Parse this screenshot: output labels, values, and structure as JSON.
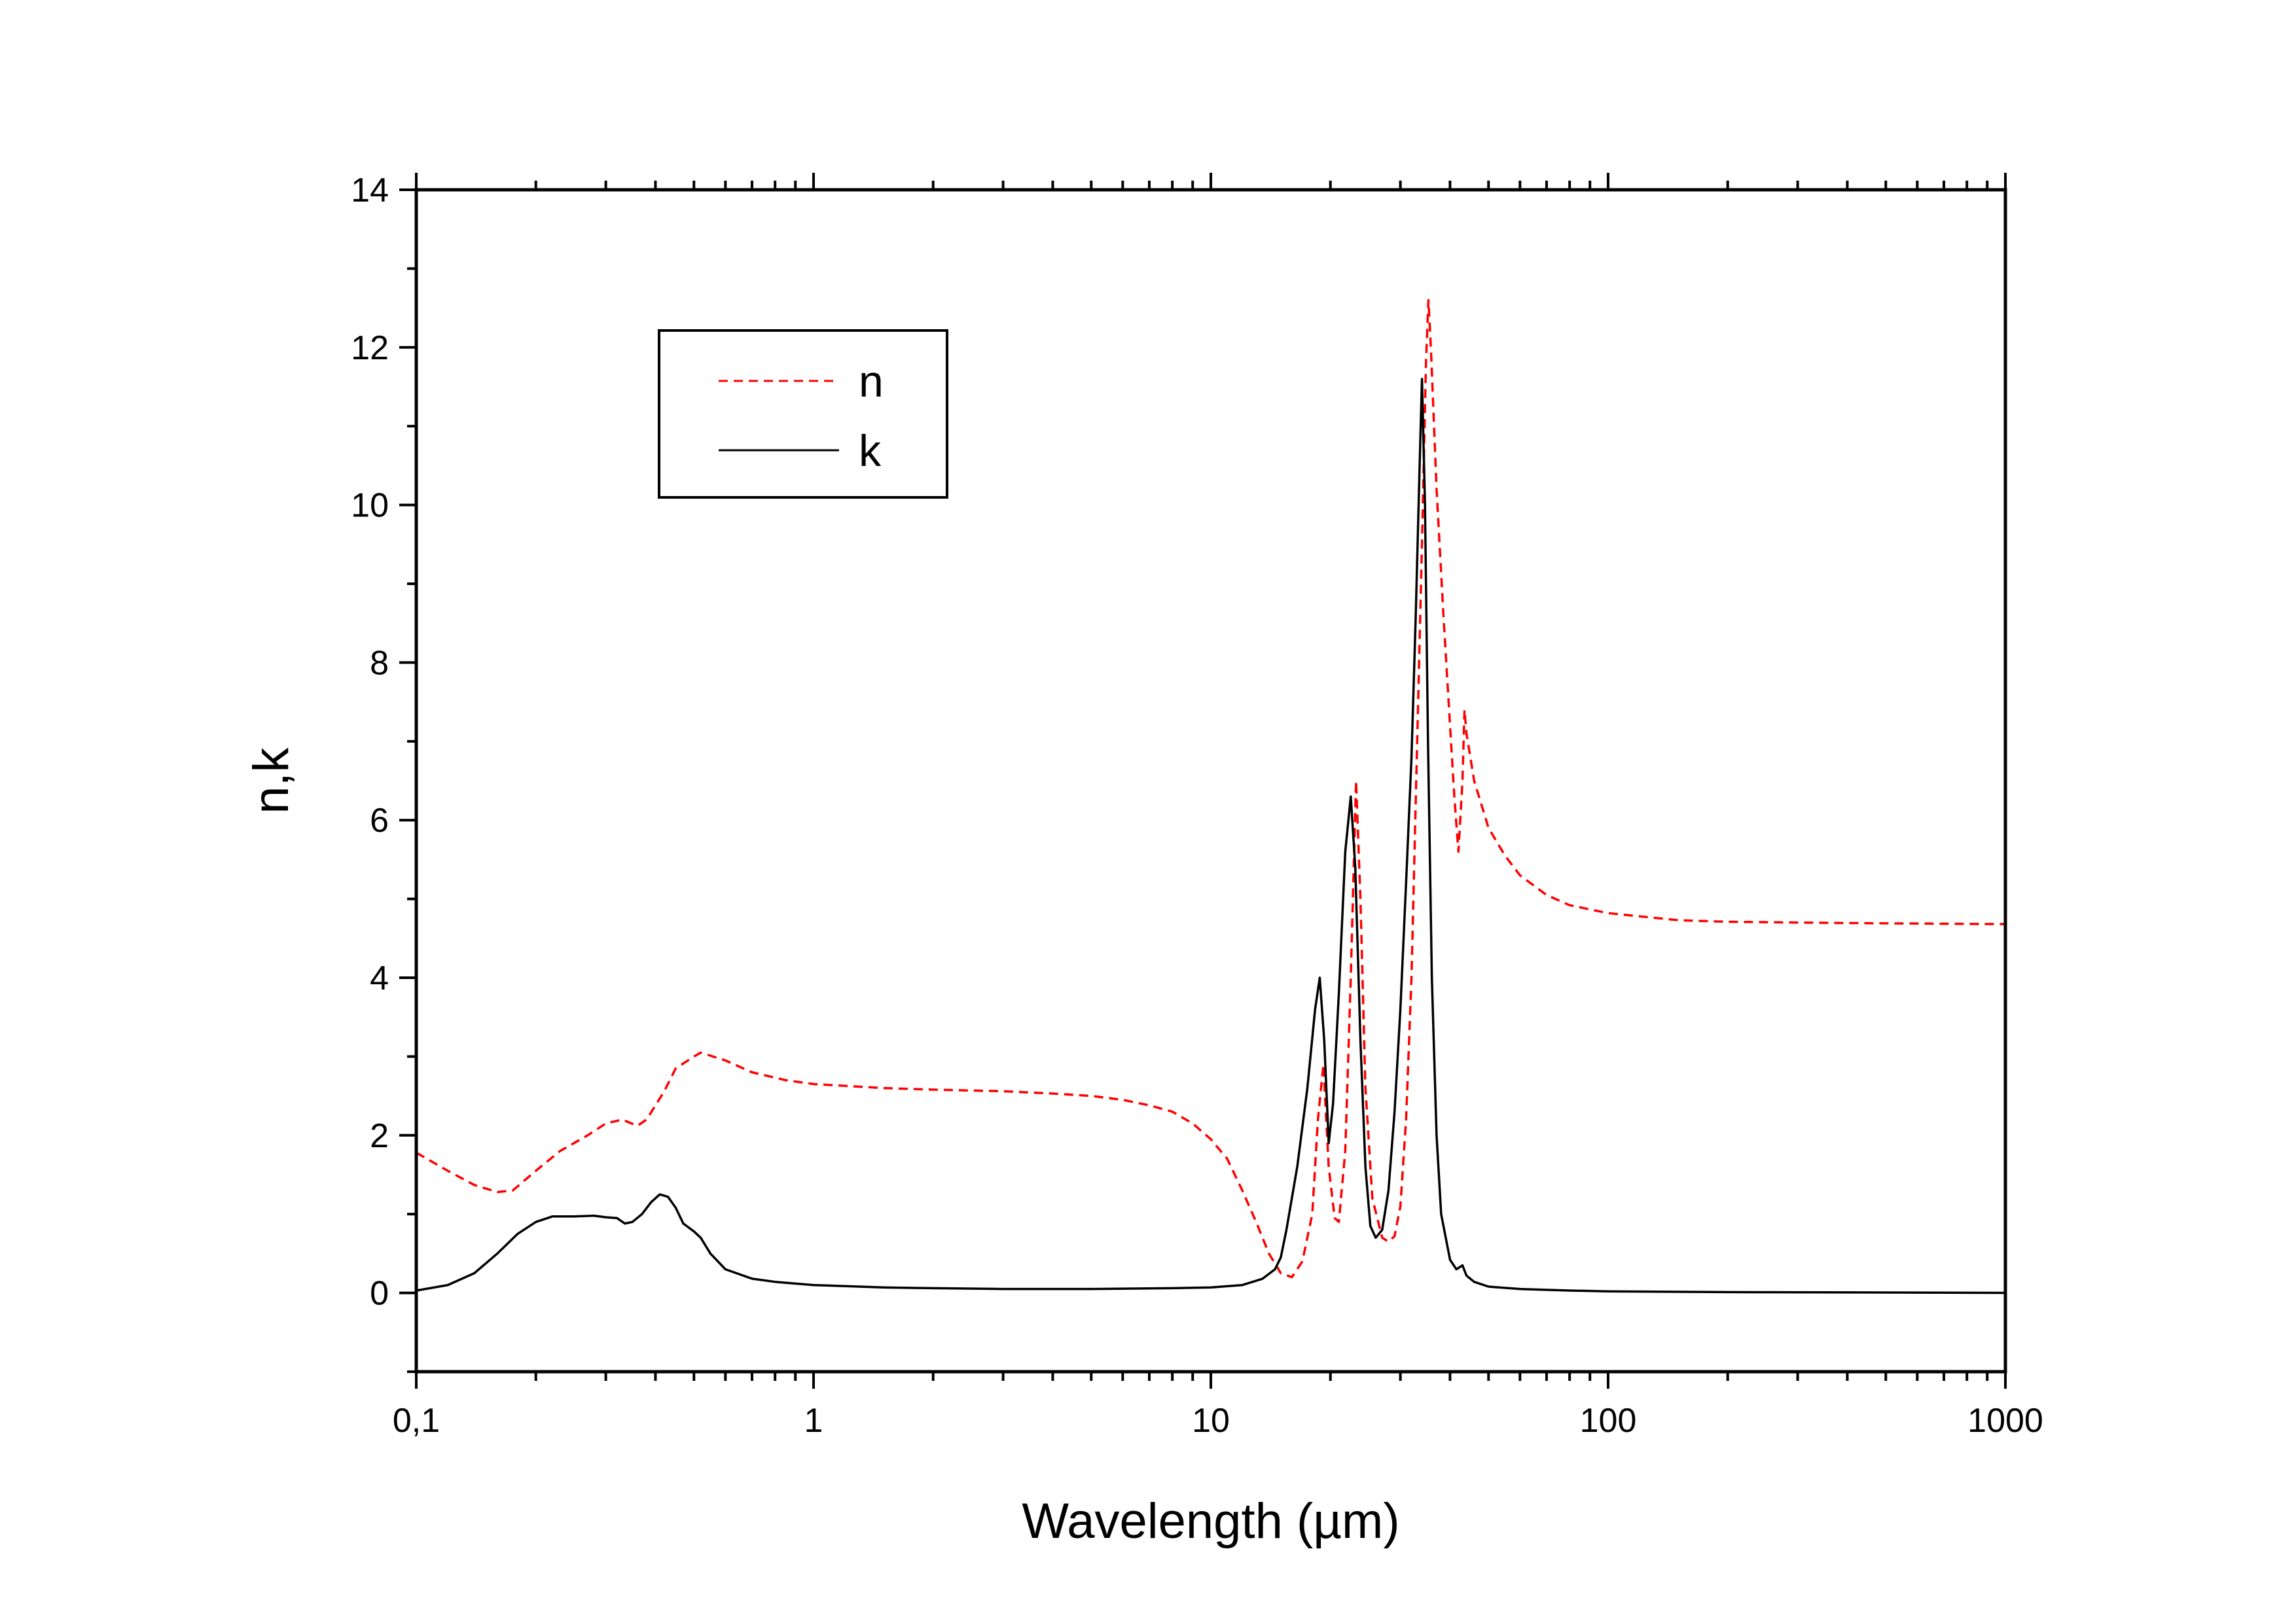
{
  "chart_data": {
    "type": "line",
    "title": "",
    "xlabel": "Wavelength (µm)",
    "ylabel": "n,k",
    "xscale": "log",
    "xlim": [
      0.1,
      1000
    ],
    "ylim": [
      -1,
      14
    ],
    "x_ticks": [
      {
        "value": 0.1,
        "label": "0,1"
      },
      {
        "value": 1,
        "label": "1"
      },
      {
        "value": 10,
        "label": "10"
      },
      {
        "value": 100,
        "label": "100"
      },
      {
        "value": 1000,
        "label": "1000"
      }
    ],
    "y_ticks": [
      {
        "value": 0,
        "label": "0"
      },
      {
        "value": 2,
        "label": "2"
      },
      {
        "value": 4,
        "label": "4"
      },
      {
        "value": 6,
        "label": "6"
      },
      {
        "value": 8,
        "label": "8"
      },
      {
        "value": 10,
        "label": "10"
      },
      {
        "value": 12,
        "label": "12"
      },
      {
        "value": 14,
        "label": "14"
      }
    ],
    "grid": false,
    "legend": {
      "position": "upper-left"
    },
    "series": [
      {
        "name": "n",
        "color": "#ff0000",
        "style": "dashed",
        "points": [
          [
            0.1,
            1.78
          ],
          [
            0.12,
            1.55
          ],
          [
            0.14,
            1.37
          ],
          [
            0.16,
            1.28
          ],
          [
            0.175,
            1.3
          ],
          [
            0.2,
            1.55
          ],
          [
            0.23,
            1.8
          ],
          [
            0.27,
            2.0
          ],
          [
            0.3,
            2.15
          ],
          [
            0.33,
            2.2
          ],
          [
            0.36,
            2.12
          ],
          [
            0.38,
            2.2
          ],
          [
            0.42,
            2.55
          ],
          [
            0.45,
            2.85
          ],
          [
            0.5,
            3.0
          ],
          [
            0.52,
            3.05
          ],
          [
            0.6,
            2.95
          ],
          [
            0.7,
            2.8
          ],
          [
            0.85,
            2.7
          ],
          [
            1,
            2.65
          ],
          [
            1.5,
            2.6
          ],
          [
            2,
            2.58
          ],
          [
            3,
            2.56
          ],
          [
            4,
            2.53
          ],
          [
            5,
            2.5
          ],
          [
            6,
            2.45
          ],
          [
            7,
            2.38
          ],
          [
            8,
            2.3
          ],
          [
            9,
            2.15
          ],
          [
            10,
            1.95
          ],
          [
            11,
            1.7
          ],
          [
            12,
            1.3
          ],
          [
            13,
            0.9
          ],
          [
            14,
            0.5
          ],
          [
            15,
            0.25
          ],
          [
            16,
            0.2
          ],
          [
            17,
            0.4
          ],
          [
            18,
            1.0
          ],
          [
            18.6,
            2.2
          ],
          [
            19.2,
            2.9
          ],
          [
            19.8,
            1.6
          ],
          [
            20.5,
            0.95
          ],
          [
            21,
            0.9
          ],
          [
            21.8,
            1.8
          ],
          [
            22.5,
            4.0
          ],
          [
            23.2,
            6.5
          ],
          [
            23.8,
            5.0
          ],
          [
            24.5,
            2.6
          ],
          [
            25.5,
            1.2
          ],
          [
            27,
            0.7
          ],
          [
            28,
            0.65
          ],
          [
            29,
            0.72
          ],
          [
            30,
            1.1
          ],
          [
            31,
            2.2
          ],
          [
            32,
            4.0
          ],
          [
            33,
            6.8
          ],
          [
            34,
            9.5
          ],
          [
            34.8,
            11.8
          ],
          [
            35.3,
            12.6
          ],
          [
            35.8,
            12.0
          ],
          [
            37,
            10.2
          ],
          [
            38.5,
            8.6
          ],
          [
            40,
            7.2
          ],
          [
            41,
            6.3
          ],
          [
            42,
            5.6
          ],
          [
            43,
            6.5
          ],
          [
            43.5,
            7.4
          ],
          [
            44,
            7.1
          ],
          [
            46,
            6.5
          ],
          [
            50,
            5.9
          ],
          [
            55,
            5.55
          ],
          [
            60,
            5.3
          ],
          [
            70,
            5.05
          ],
          [
            80,
            4.92
          ],
          [
            100,
            4.82
          ],
          [
            150,
            4.73
          ],
          [
            200,
            4.71
          ],
          [
            300,
            4.7
          ],
          [
            500,
            4.69
          ],
          [
            1000,
            4.68
          ]
        ]
      },
      {
        "name": "k",
        "color": "#000000",
        "style": "solid",
        "points": [
          [
            0.1,
            0.03
          ],
          [
            0.12,
            0.1
          ],
          [
            0.14,
            0.25
          ],
          [
            0.16,
            0.5
          ],
          [
            0.18,
            0.75
          ],
          [
            0.2,
            0.9
          ],
          [
            0.22,
            0.97
          ],
          [
            0.25,
            0.97
          ],
          [
            0.28,
            0.98
          ],
          [
            0.3,
            0.96
          ],
          [
            0.32,
            0.95
          ],
          [
            0.335,
            0.88
          ],
          [
            0.35,
            0.9
          ],
          [
            0.37,
            1.0
          ],
          [
            0.39,
            1.15
          ],
          [
            0.41,
            1.25
          ],
          [
            0.43,
            1.22
          ],
          [
            0.45,
            1.08
          ],
          [
            0.47,
            0.88
          ],
          [
            0.5,
            0.78
          ],
          [
            0.52,
            0.7
          ],
          [
            0.55,
            0.5
          ],
          [
            0.6,
            0.3
          ],
          [
            0.7,
            0.18
          ],
          [
            0.8,
            0.14
          ],
          [
            1,
            0.1
          ],
          [
            1.5,
            0.07
          ],
          [
            2,
            0.06
          ],
          [
            3,
            0.05
          ],
          [
            5,
            0.05
          ],
          [
            8,
            0.06
          ],
          [
            10,
            0.07
          ],
          [
            12,
            0.1
          ],
          [
            13.5,
            0.18
          ],
          [
            14.5,
            0.3
          ],
          [
            15,
            0.45
          ],
          [
            15.5,
            0.8
          ],
          [
            16.5,
            1.6
          ],
          [
            17.5,
            2.6
          ],
          [
            18.3,
            3.6
          ],
          [
            18.8,
            4.0
          ],
          [
            19.3,
            3.2
          ],
          [
            19.8,
            1.9
          ],
          [
            20.3,
            2.4
          ],
          [
            21,
            3.8
          ],
          [
            21.8,
            5.6
          ],
          [
            22.5,
            6.3
          ],
          [
            23.1,
            5.4
          ],
          [
            23.8,
            3.2
          ],
          [
            24.5,
            1.6
          ],
          [
            25.2,
            0.85
          ],
          [
            26,
            0.7
          ],
          [
            27,
            0.8
          ],
          [
            28,
            1.3
          ],
          [
            29,
            2.3
          ],
          [
            30,
            3.6
          ],
          [
            31,
            5.2
          ],
          [
            32,
            6.8
          ],
          [
            32.8,
            8.6
          ],
          [
            33.5,
            10.4
          ],
          [
            34,
            11.6
          ],
          [
            34.6,
            10.0
          ],
          [
            35.2,
            7.0
          ],
          [
            36,
            4.0
          ],
          [
            37,
            2.0
          ],
          [
            38,
            1.0
          ],
          [
            40,
            0.42
          ],
          [
            41.5,
            0.3
          ],
          [
            43,
            0.35
          ],
          [
            44,
            0.22
          ],
          [
            46,
            0.14
          ],
          [
            50,
            0.08
          ],
          [
            60,
            0.05
          ],
          [
            80,
            0.03
          ],
          [
            100,
            0.02
          ],
          [
            200,
            0.01
          ],
          [
            500,
            0.005
          ],
          [
            1000,
            0.0
          ]
        ]
      }
    ]
  }
}
